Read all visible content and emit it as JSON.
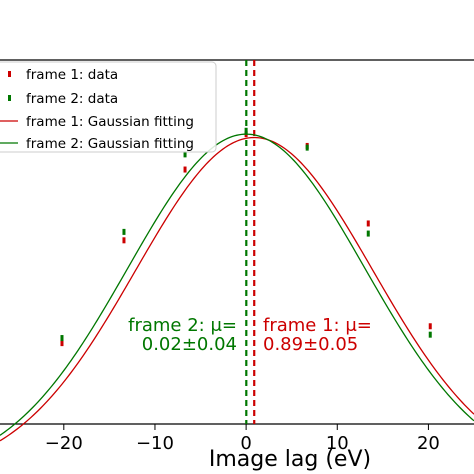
{
  "chart_data": {
    "type": "line",
    "xlabel": "Image lag (eV)",
    "xlim": [
      -27,
      25
    ],
    "ylim": [
      0.15,
      1.23
    ],
    "x_ticks": [
      -20,
      -10,
      0,
      10,
      20
    ],
    "x_tick_labels": [
      "−20",
      "−10",
      "0",
      "10",
      "20"
    ],
    "series": [
      {
        "name": "frame 1: data",
        "kind": "scatter",
        "color": "#cc0000",
        "x": [
          -20.2,
          -13.4,
          -6.7,
          0,
          6.7,
          13.4,
          20.2
        ],
        "y": [
          0.39,
          0.695,
          0.905,
          1.01,
          0.975,
          0.745,
          0.44
        ]
      },
      {
        "name": "frame 2: data",
        "kind": "scatter",
        "color": "#007700",
        "x": [
          -20.2,
          -13.4,
          -6.7,
          0,
          6.7,
          13.4,
          20.2
        ],
        "y": [
          0.405,
          0.72,
          0.95,
          1.02,
          0.97,
          0.715,
          0.415
        ]
      },
      {
        "name": "frame 1: Gaussian fitting",
        "kind": "gaussian",
        "color": "#cc0000",
        "amplitude": 1.0,
        "mu": 0.89,
        "sigma": 13.0
      },
      {
        "name": "frame 2: Gaussian fitting",
        "kind": "gaussian",
        "color": "#007700",
        "amplitude": 1.01,
        "mu": 0.02,
        "sigma": 13.0
      }
    ],
    "vlines": [
      {
        "x": 0.02,
        "color": "#007700",
        "style": "dashed"
      },
      {
        "x": 0.89,
        "color": "#cc0000",
        "style": "dashed"
      }
    ],
    "annotations": [
      {
        "line1": "frame 2: μ=",
        "line2": "0.02±0.04",
        "color": "#007700"
      },
      {
        "line1": "frame 1: μ=",
        "line2": "0.89±0.05",
        "color": "#cc0000"
      }
    ],
    "legend": {
      "placement": "top-left",
      "entries": [
        "frame 1: data",
        "frame 2: data",
        "frame 1: Gaussian fitting",
        "frame 2: Gaussian fitting"
      ]
    },
    "grid": false
  }
}
